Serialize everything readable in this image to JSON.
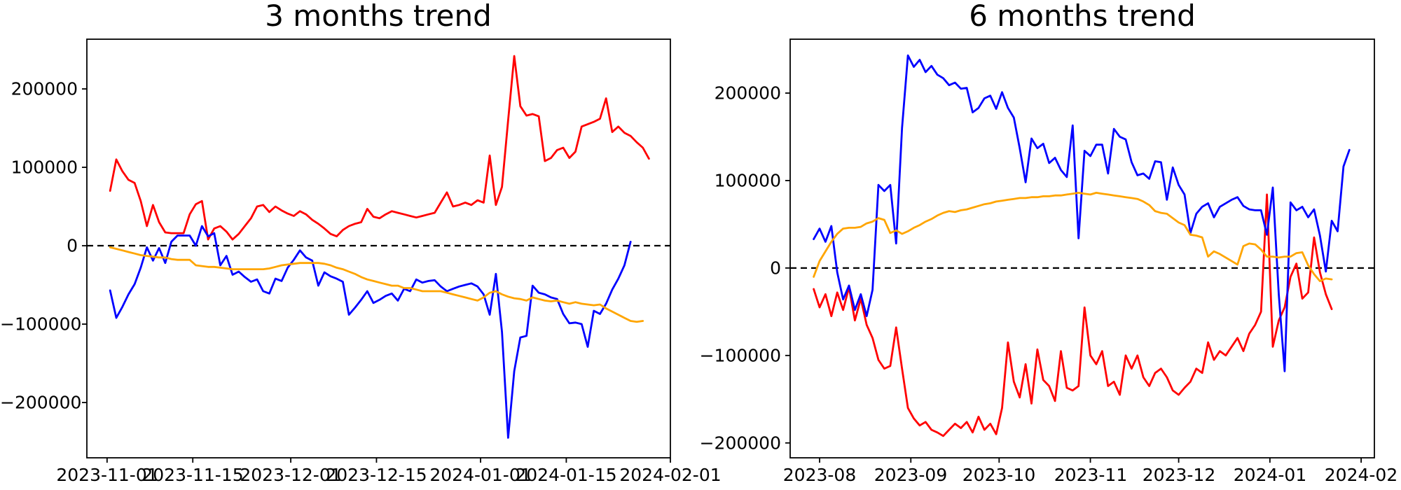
{
  "figure": {
    "background": "#ffffff"
  },
  "chart_data": [
    {
      "id": "three-months",
      "type": "line",
      "title": "3 months trend",
      "xlabel": "",
      "ylabel": "",
      "grid": false,
      "legend": "none",
      "zero_line": {
        "style": "dashed",
        "color": "#000000"
      },
      "y_ticks": [
        200000,
        100000,
        0,
        -100000,
        -200000
      ],
      "y_axis_range": [
        -270500,
        263400
      ],
      "x_tick_labels": [
        "2023-11-01",
        "2023-11-15",
        "2023-12-01",
        "2023-12-15",
        "2024-01-01",
        "2024-01-15",
        "2024-02-01"
      ],
      "x_tick_days": [
        0,
        14,
        30,
        44,
        61,
        75,
        92
      ],
      "x_axis_range_days": [
        -3.3,
        92
      ],
      "series": [
        {
          "name": "red",
          "color": "#ff0000",
          "x_start_day": 0.5,
          "x_end_day": 88.5,
          "values": [
            70000,
            110000,
            95000,
            84000,
            80000,
            57000,
            25000,
            52000,
            30000,
            17000,
            16000,
            16000,
            16000,
            40000,
            53000,
            57000,
            8000,
            22000,
            25000,
            18000,
            8000,
            15000,
            25000,
            35000,
            50000,
            52000,
            43000,
            50000,
            45000,
            41000,
            38000,
            44000,
            40000,
            33000,
            28000,
            22000,
            15000,
            12000,
            20000,
            25000,
            28000,
            30000,
            47000,
            37000,
            35000,
            40000,
            44000,
            42000,
            40000,
            38000,
            36000,
            38000,
            40000,
            42000,
            55000,
            68000,
            50000,
            52000,
            55000,
            52000,
            58000,
            55000,
            115000,
            52000,
            75000,
            160000,
            242000,
            178000,
            166000,
            168000,
            165000,
            108000,
            112000,
            122000,
            125000,
            112000,
            120000,
            152000,
            155000,
            158000,
            162000,
            188000,
            145000,
            152000,
            144000,
            140000,
            132000,
            125000,
            111000
          ]
        },
        {
          "name": "blue",
          "color": "#0000ff",
          "x_start_day": 0.5,
          "x_end_day": 85.5,
          "values": [
            -57000,
            -92000,
            -78000,
            -62000,
            -49000,
            -28000,
            -2000,
            -19000,
            -3000,
            -22000,
            5000,
            13000,
            13000,
            13000,
            0,
            25000,
            12000,
            16000,
            -25000,
            -13000,
            -37000,
            -33000,
            -40000,
            -46000,
            -43000,
            -58000,
            -61000,
            -42000,
            -45000,
            -28000,
            -18000,
            -6000,
            -15000,
            -19000,
            -51000,
            -34000,
            -39000,
            -42000,
            -46000,
            -88000,
            -79000,
            -69000,
            -58000,
            -73000,
            -69000,
            -64000,
            -61000,
            -70000,
            -55000,
            -58000,
            -43000,
            -47000,
            -45000,
            -44000,
            -52000,
            -58000,
            -55000,
            -52000,
            -50000,
            -48000,
            -52000,
            -62000,
            -88000,
            -36000,
            -110000,
            -245000,
            -160000,
            -117000,
            -115000,
            -51000,
            -60000,
            -62000,
            -66000,
            -68000,
            -87000,
            -99000,
            -98000,
            -100000,
            -129000,
            -83000,
            -87000,
            -74000,
            -56000,
            -42000,
            -25000,
            5000
          ]
        },
        {
          "name": "orange",
          "color": "#ffa500",
          "x_start_day": 0.5,
          "x_end_day": 87.5,
          "values": [
            -2000,
            -4000,
            -6000,
            -8000,
            -10000,
            -12000,
            -13000,
            -14000,
            -15000,
            -15000,
            -17000,
            -18000,
            -18000,
            -18000,
            -25000,
            -26000,
            -27000,
            -27000,
            -28000,
            -29000,
            -30000,
            -30000,
            -30000,
            -30000,
            -30000,
            -30000,
            -29000,
            -27000,
            -25000,
            -24000,
            -23000,
            -22000,
            -22000,
            -22000,
            -22000,
            -23000,
            -25000,
            -28000,
            -30000,
            -33000,
            -36000,
            -40000,
            -43000,
            -45000,
            -47000,
            -49000,
            -51000,
            -51000,
            -54000,
            -54000,
            -56000,
            -58000,
            -58000,
            -58000,
            -58000,
            -60000,
            -62000,
            -64000,
            -66000,
            -68000,
            -70000,
            -66000,
            -60000,
            -58000,
            -62000,
            -65000,
            -67000,
            -68000,
            -70000,
            -66000,
            -68000,
            -70000,
            -71000,
            -70000,
            -72000,
            -74000,
            -72000,
            -74000,
            -75000,
            -76000,
            -75000,
            -80000,
            -84000,
            -88000,
            -92000,
            -96000,
            -97000,
            -96000
          ]
        }
      ]
    },
    {
      "id": "six-months",
      "type": "line",
      "title": "6 months trend",
      "xlabel": "",
      "ylabel": "",
      "grid": false,
      "legend": "none",
      "zero_line": {
        "style": "dashed",
        "color": "#000000"
      },
      "y_ticks": [
        200000,
        100000,
        0,
        -100000,
        -200000
      ],
      "y_axis_range": [
        -217000,
        261600
      ],
      "x_tick_labels": [
        "2023-08",
        "2023-09",
        "2023-10",
        "2023-11",
        "2023-12",
        "2024-01",
        "2024-02"
      ],
      "x_tick_days": [
        0,
        31,
        61,
        92,
        122,
        153,
        184
      ],
      "x_axis_range_days": [
        -10,
        188.5
      ],
      "series": [
        {
          "name": "red",
          "color": "#ff0000",
          "x_start_day": -2,
          "x_end_day": 174,
          "values": [
            -24000,
            -45000,
            -30000,
            -55000,
            -28000,
            -48000,
            -22000,
            -60000,
            -35000,
            -65000,
            -80000,
            -105000,
            -115000,
            -112000,
            -68000,
            -115000,
            -160000,
            -172000,
            -180000,
            -176000,
            -185000,
            -188000,
            -192000,
            -185000,
            -178000,
            -183000,
            -176000,
            -188000,
            -170000,
            -185000,
            -178000,
            -190000,
            -160000,
            -85000,
            -130000,
            -148000,
            -110000,
            -155000,
            -93000,
            -128000,
            -135000,
            -152000,
            -95000,
            -137000,
            -140000,
            -135000,
            -45000,
            -100000,
            -110000,
            -95000,
            -135000,
            -130000,
            -145000,
            -100000,
            -115000,
            -100000,
            -125000,
            -135000,
            -120000,
            -115000,
            -125000,
            -140000,
            -145000,
            -137000,
            -130000,
            -115000,
            -120000,
            -85000,
            -105000,
            -95000,
            -100000,
            -90000,
            -80000,
            -95000,
            -75000,
            -65000,
            -50000,
            84000,
            -90000,
            -60000,
            -45000,
            -10000,
            5000,
            -35000,
            -28000,
            35000,
            -5000,
            -30000,
            -47000
          ]
        },
        {
          "name": "blue",
          "color": "#0000ff",
          "x_start_day": -2,
          "x_end_day": 180,
          "values": [
            33000,
            45000,
            30000,
            48000,
            -5000,
            -36000,
            -20000,
            -48000,
            -30000,
            -55000,
            -25000,
            95000,
            88000,
            95000,
            28000,
            160000,
            243000,
            230000,
            238000,
            224000,
            231000,
            221000,
            217000,
            209000,
            212000,
            205000,
            206000,
            178000,
            183000,
            194000,
            197000,
            182000,
            201000,
            183000,
            172000,
            137000,
            98000,
            148000,
            137000,
            142000,
            120000,
            126000,
            112000,
            104000,
            163000,
            34000,
            134000,
            128000,
            141000,
            141000,
            108000,
            159000,
            150000,
            147000,
            121000,
            106000,
            108000,
            102000,
            122000,
            121000,
            78000,
            115000,
            95000,
            84000,
            40000,
            62000,
            70000,
            74000,
            58000,
            70000,
            74000,
            78000,
            81000,
            71000,
            67000,
            66000,
            66000,
            38000,
            92000,
            -30000,
            -118000,
            75000,
            66000,
            70000,
            58000,
            67000,
            37000,
            -4000,
            54000,
            42000,
            116000,
            135000
          ]
        },
        {
          "name": "orange",
          "color": "#ffa500",
          "x_start_day": -2,
          "x_end_day": 174,
          "values": [
            -10000,
            8000,
            19000,
            30000,
            39000,
            45000,
            46000,
            46000,
            47000,
            51000,
            53000,
            57000,
            55000,
            40000,
            43000,
            39000,
            42000,
            46000,
            49000,
            53000,
            56000,
            60000,
            63000,
            65000,
            64000,
            66000,
            67000,
            69000,
            71000,
            73000,
            74000,
            76000,
            77000,
            78000,
            79000,
            80000,
            80000,
            81000,
            81000,
            82000,
            82000,
            83000,
            83000,
            84000,
            85000,
            86000,
            85000,
            84000,
            86000,
            85000,
            84000,
            83000,
            82000,
            81000,
            80000,
            79000,
            76000,
            72000,
            65000,
            63000,
            62000,
            57000,
            52000,
            49000,
            38000,
            37000,
            35000,
            13000,
            19000,
            16000,
            12000,
            8000,
            4000,
            25000,
            28000,
            27000,
            21000,
            13000,
            13000,
            12000,
            13000,
            13000,
            17000,
            18000,
            3000,
            -7000,
            -15000,
            -12000,
            -13000
          ]
        }
      ]
    }
  ]
}
